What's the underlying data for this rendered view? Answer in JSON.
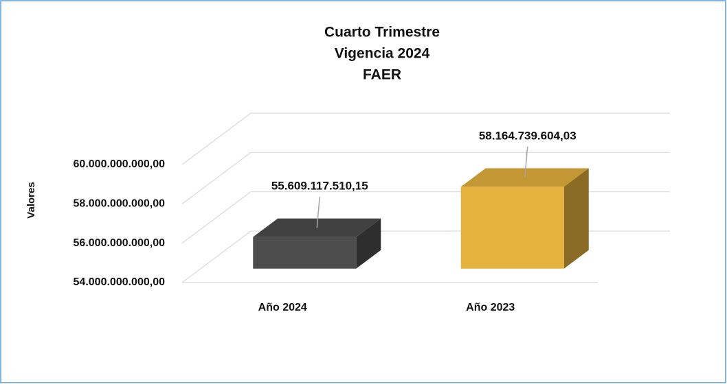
{
  "chart_data": {
    "type": "bar3d",
    "title": [
      "Cuarto Trimestre",
      "Vigencia 2024",
      "FAER"
    ],
    "y_label": "Valores",
    "categories": [
      "Año 2024",
      "Año 2023"
    ],
    "values": [
      55609117510.15,
      58164739604.03
    ],
    "value_labels": [
      "55.609.117.510,15",
      "58.164.739.604,03"
    ],
    "colors": [
      "#4d4d4d",
      "#e6b23e"
    ],
    "ylim": [
      54000000000,
      60000000000
    ],
    "yticks": [
      {
        "value": 54000000000,
        "label": "54.000.000.000,00"
      },
      {
        "value": 56000000000,
        "label": "56.000.000.000,00"
      },
      {
        "value": 58000000000,
        "label": "58.000.000.000,00"
      },
      {
        "value": 60000000000,
        "label": "60.000.000.000,00"
      }
    ],
    "grid": true
  }
}
